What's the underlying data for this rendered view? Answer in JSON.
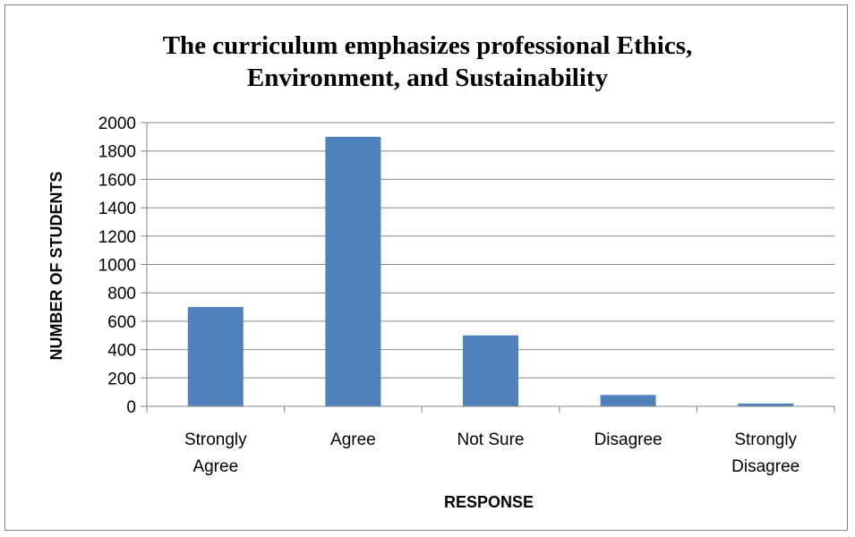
{
  "chart_data": {
    "type": "bar",
    "title_lines": [
      "The curriculum emphasizes professional Ethics,",
      "Environment, and Sustainability"
    ],
    "xlabel": "RESPONSE",
    "ylabel": "NUMBER OF STUDENTS",
    "categories": [
      [
        "Strongly",
        "Agree"
      ],
      [
        "Agree"
      ],
      [
        "Not Sure"
      ],
      [
        "Disagree"
      ],
      [
        "Strongly",
        "Disagree"
      ]
    ],
    "values": [
      700,
      1900,
      500,
      80,
      20
    ],
    "ylim": [
      0,
      2000
    ],
    "yticks": [
      0,
      200,
      400,
      600,
      800,
      1000,
      1200,
      1400,
      1600,
      1800,
      2000
    ],
    "grid": true,
    "legend": "none",
    "bar_color": "#4F81BD",
    "grid_color": "#868686"
  }
}
